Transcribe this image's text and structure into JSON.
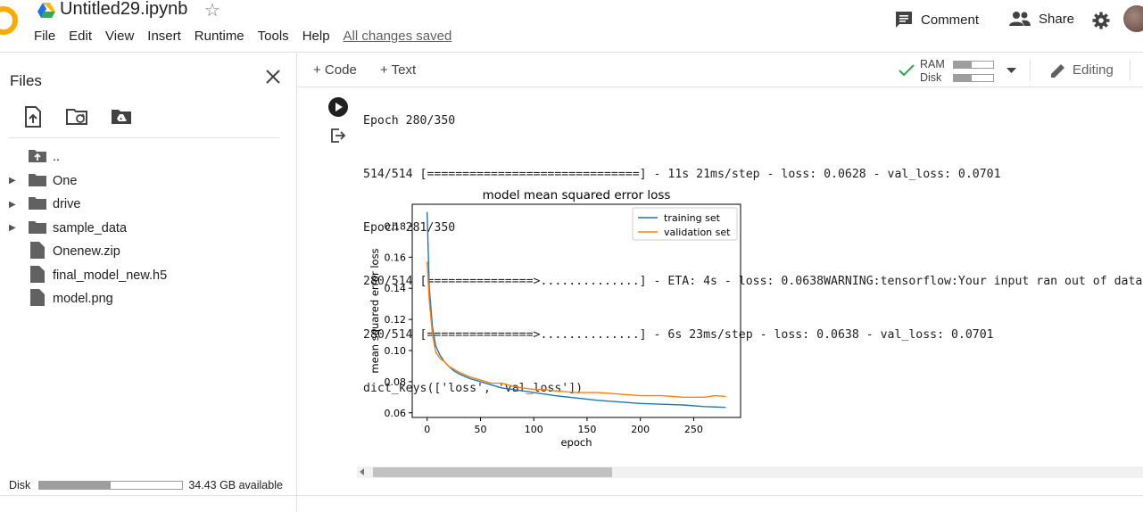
{
  "header": {
    "title": "Untitled29.ipynb",
    "menu": [
      "File",
      "Edit",
      "View",
      "Insert",
      "Runtime",
      "Tools",
      "Help"
    ],
    "save_status": "All changes saved",
    "comment_label": "Comment",
    "share_label": "Share"
  },
  "sidebar": {
    "title": "Files",
    "items": [
      {
        "label": "..",
        "type": "parent"
      },
      {
        "label": "One",
        "type": "folder"
      },
      {
        "label": "drive",
        "type": "folder"
      },
      {
        "label": "sample_data",
        "type": "folder"
      },
      {
        "label": "Onenew.zip",
        "type": "file"
      },
      {
        "label": "final_model_new.h5",
        "type": "file"
      },
      {
        "label": "model.png",
        "type": "file"
      }
    ],
    "disk_label": "Disk",
    "disk_available": "34.43 GB available",
    "disk_used_fraction": 0.5
  },
  "toolbar": {
    "code_label": "+ Code",
    "text_label": "+ Text",
    "ram_label": "RAM",
    "disk_label": "Disk",
    "ram_used_fraction": 0.45,
    "disk_used_fraction": 0.45,
    "editing_label": "Editing"
  },
  "output": {
    "lines": [
      "Epoch 280/350",
      "514/514 [==============================] - 11s 21ms/step - loss: 0.0628 - val_loss: 0.0701",
      "Epoch 281/350",
      "280/514 [===============>..............] - ETA: 4s - loss: 0.0638WARNING:tensorflow:Your input ran out of data",
      "280/514 [===============>..............] - 6s 23ms/step - loss: 0.0638 - val_loss: 0.0701",
      "dict_keys(['loss', 'val_loss'])"
    ]
  },
  "chart_data": {
    "type": "line",
    "title": "model mean squared error loss",
    "xlabel": "epoch",
    "ylabel": "mean squared error loss",
    "xlim": [
      -14,
      294
    ],
    "ylim": [
      0.057,
      0.194
    ],
    "xticks": [
      0,
      50,
      100,
      150,
      200,
      250
    ],
    "yticks": [
      0.06,
      0.08,
      0.1,
      0.12,
      0.14,
      0.16,
      0.18
    ],
    "legend_position": "top-right",
    "series": [
      {
        "name": "training set",
        "color": "#1f77b4",
        "x": [
          0,
          2,
          5,
          8,
          12,
          16,
          20,
          25,
          30,
          40,
          50,
          60,
          70,
          80,
          90,
          100,
          120,
          140,
          160,
          180,
          200,
          220,
          240,
          260,
          280
        ],
        "y": [
          0.189,
          0.14,
          0.115,
          0.103,
          0.097,
          0.093,
          0.09,
          0.087,
          0.085,
          0.082,
          0.08,
          0.078,
          0.076,
          0.075,
          0.074,
          0.073,
          0.071,
          0.0695,
          0.068,
          0.067,
          0.066,
          0.0655,
          0.065,
          0.064,
          0.0635
        ]
      },
      {
        "name": "validation set",
        "color": "#ff7f0e",
        "x": [
          0,
          2,
          5,
          8,
          12,
          16,
          20,
          25,
          30,
          40,
          50,
          60,
          70,
          80,
          90,
          100,
          110,
          120,
          140,
          150,
          160,
          180,
          200,
          220,
          240,
          260,
          270,
          280
        ],
        "y": [
          0.157,
          0.132,
          0.11,
          0.099,
          0.095,
          0.093,
          0.09,
          0.088,
          0.086,
          0.083,
          0.081,
          0.079,
          0.079,
          0.077,
          0.076,
          0.075,
          0.075,
          0.074,
          0.073,
          0.073,
          0.073,
          0.072,
          0.071,
          0.071,
          0.07,
          0.07,
          0.071,
          0.0705
        ]
      }
    ]
  }
}
